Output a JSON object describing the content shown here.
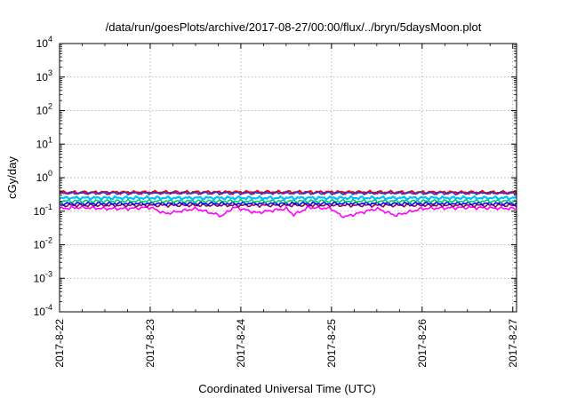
{
  "chart_data": {
    "type": "line",
    "title": "/data/run/goesPlots/archive/2017-08-27/00:00/flux/../bryn/5daysMoon.plot",
    "xlabel": "Coordinated Universal Time (UTC)",
    "ylabel": "cGy/day",
    "y_scale": "log",
    "ylim": [
      0.0001,
      10000
    ],
    "y_ticks": [
      {
        "value": 0.0001,
        "base": "10",
        "exp": "-4"
      },
      {
        "value": 0.001,
        "base": "10",
        "exp": "-3"
      },
      {
        "value": 0.01,
        "base": "10",
        "exp": "-2"
      },
      {
        "value": 0.1,
        "base": "10",
        "exp": "-1"
      },
      {
        "value": 1,
        "base": "10",
        "exp": "0"
      },
      {
        "value": 10,
        "base": "10",
        "exp": "1"
      },
      {
        "value": 100,
        "base": "10",
        "exp": "2"
      },
      {
        "value": 1000,
        "base": "10",
        "exp": "3"
      },
      {
        "value": 10000,
        "base": "10",
        "exp": "4"
      }
    ],
    "xlim": [
      "2017-8-22 00:00",
      "2017-8-27 01:00"
    ],
    "x_ticks": [
      "2017-8-22",
      "2017-8-23",
      "2017-8-24",
      "2017-8-25",
      "2017-8-26",
      "2017-8-27"
    ],
    "grid": true,
    "series": [
      {
        "color": "#ff00ff",
        "baseline": 0.12,
        "min": 0.065,
        "values": [
          [
            "2017-8-22 00:00",
            0.12
          ],
          [
            "2017-8-22 06:00",
            0.13
          ],
          [
            "2017-8-22 12:00",
            0.12
          ],
          [
            "2017-8-22 18:00",
            0.12
          ],
          [
            "2017-8-23 00:00",
            0.13
          ],
          [
            "2017-8-23 04:00",
            0.085
          ],
          [
            "2017-8-23 12:00",
            0.12
          ],
          [
            "2017-8-23 19:00",
            0.072
          ],
          [
            "2017-8-23 22:00",
            0.13
          ],
          [
            "2017-8-24 00:00",
            0.12
          ],
          [
            "2017-8-24 04:00",
            0.09
          ],
          [
            "2017-8-24 12:00",
            0.12
          ],
          [
            "2017-8-24 14:00",
            0.078
          ],
          [
            "2017-8-24 18:00",
            0.13
          ],
          [
            "2017-8-25 00:00",
            0.12
          ],
          [
            "2017-8-25 03:00",
            0.066
          ],
          [
            "2017-8-25 12:00",
            0.12
          ],
          [
            "2017-8-25 17:00",
            0.075
          ],
          [
            "2017-8-26 00:00",
            0.12
          ],
          [
            "2017-8-26 12:00",
            0.13
          ],
          [
            "2017-8-27 00:00",
            0.12
          ],
          [
            "2017-8-27 01:00",
            0.12
          ]
        ]
      },
      {
        "color": "#8b0a50",
        "baseline": 0.15,
        "min": 0.11,
        "values": [
          [
            "2017-8-22 00:00",
            0.15
          ],
          [
            "2017-8-23 12:00",
            0.15
          ],
          [
            "2017-8-25 00:00",
            0.15
          ],
          [
            "2017-8-27 01:00",
            0.15
          ]
        ]
      },
      {
        "color": "#0000ff",
        "baseline": 0.17,
        "min": 0.14,
        "values": [
          [
            "2017-8-22 00:00",
            0.17
          ],
          [
            "2017-8-24 12:00",
            0.17
          ],
          [
            "2017-8-27 01:00",
            0.17
          ]
        ]
      },
      {
        "color": "#00cc66",
        "baseline": 0.2,
        "min": 0.16,
        "values": [
          [
            "2017-8-22 00:00",
            0.2
          ],
          [
            "2017-8-24 12:00",
            0.2
          ],
          [
            "2017-8-27 01:00",
            0.2
          ]
        ]
      },
      {
        "color": "#00bfff",
        "baseline": 0.25,
        "min": 0.1,
        "values": [
          [
            "2017-8-22 00:00",
            0.25
          ],
          [
            "2017-8-24 12:00",
            0.25
          ],
          [
            "2017-8-27 01:00",
            0.25
          ]
        ]
      },
      {
        "color": "#ff0000",
        "baseline": 0.36,
        "min": 0.2,
        "values": [
          [
            "2017-8-22 00:00",
            0.36
          ],
          [
            "2017-8-24 12:00",
            0.37
          ],
          [
            "2017-8-27 01:00",
            0.36
          ]
        ]
      },
      {
        "color": "#3333cc",
        "baseline": 0.35,
        "min": 0.2,
        "values": [
          [
            "2017-8-22 00:00",
            0.35
          ],
          [
            "2017-8-24 12:00",
            0.35
          ],
          [
            "2017-8-27 01:00",
            0.35
          ]
        ]
      }
    ]
  }
}
